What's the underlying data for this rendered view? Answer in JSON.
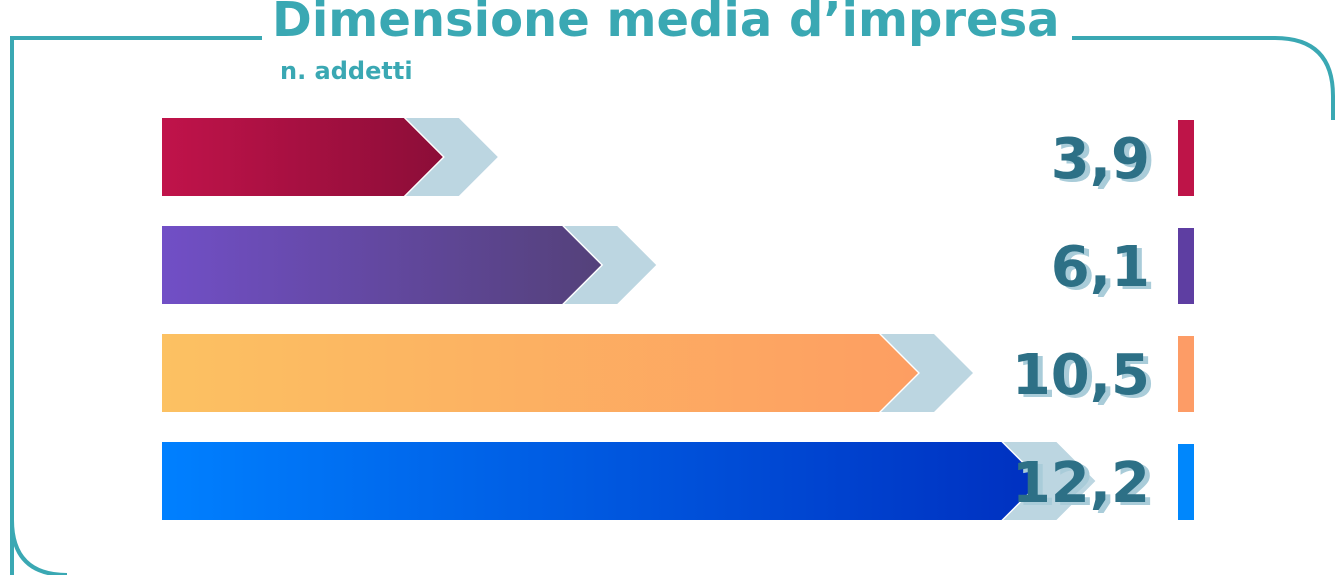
{
  "chart_data": {
    "type": "bar",
    "title": "Dimensione media d’impresa",
    "subtitle": "n. addetti",
    "orientation": "horizontal",
    "values": [
      3.9,
      6.1,
      10.5,
      12.2
    ],
    "value_labels": [
      "3,9",
      "6,1",
      "10,5",
      "12,2"
    ],
    "colors": [
      [
        "#c0134a",
        "#8c0d38"
      ],
      [
        "#714fc6",
        "#54417a"
      ],
      [
        "#fcc162",
        "#fd9e62"
      ],
      [
        "#0080ff",
        "#0030c0"
      ]
    ],
    "marker_colors": [
      "#be1448",
      "#5e3ea2",
      "#fd9c66",
      "#0087fc"
    ],
    "xlim": [
      0,
      12.5
    ],
    "grid": false,
    "legend": "none"
  },
  "colors": {
    "frame": "#3aa8b3",
    "label_text": "#2d7086",
    "label_shadow": "#a9ccd9",
    "arrow_shadow": "#bcd6e1"
  }
}
